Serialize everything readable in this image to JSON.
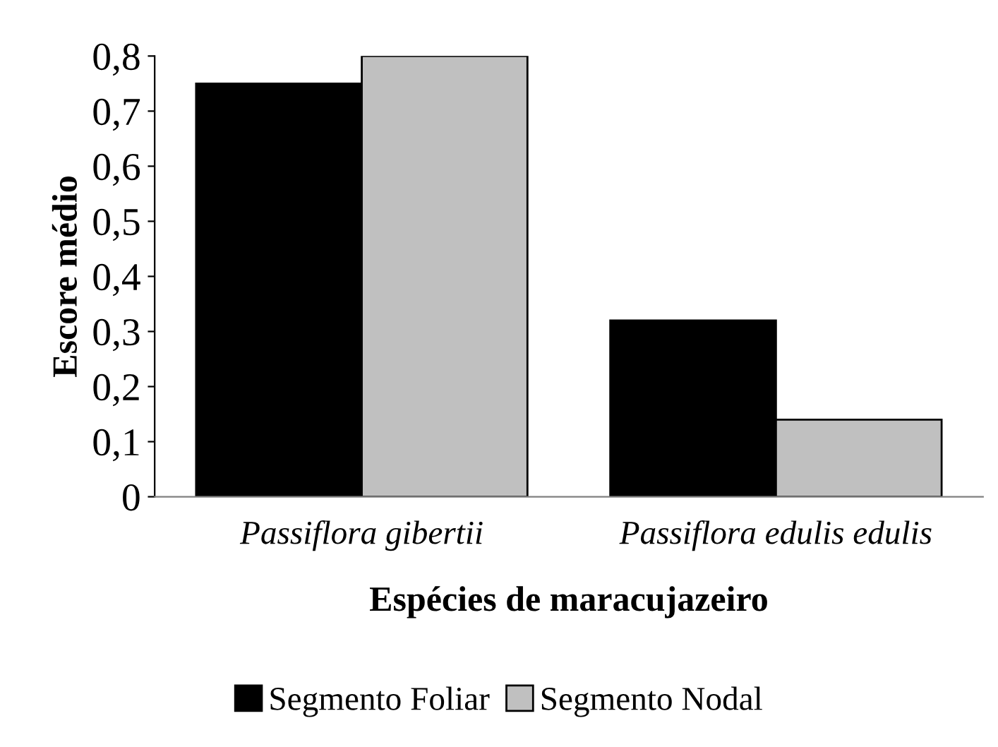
{
  "chart_data": {
    "type": "bar",
    "xlabel": "Espécies de maracujazeiro",
    "ylabel": "Escore médio",
    "categories": [
      "Passiflora gibertii",
      "Passiflora edulis edulis"
    ],
    "series": [
      {
        "name": "Segmento Foliar",
        "color": "#000000",
        "values": [
          0.75,
          0.32
        ]
      },
      {
        "name": "Segmento Nodal",
        "color": "#c0c0c0",
        "values": [
          0.8,
          0.14
        ]
      }
    ],
    "ylim": [
      0,
      0.8
    ],
    "yticks": [
      {
        "value": 0,
        "label": "0"
      },
      {
        "value": 0.1,
        "label": "0,1"
      },
      {
        "value": 0.2,
        "label": "0,2"
      },
      {
        "value": 0.3,
        "label": "0,3"
      },
      {
        "value": 0.4,
        "label": "0,4"
      },
      {
        "value": 0.5,
        "label": "0,5"
      },
      {
        "value": 0.6,
        "label": "0,6"
      },
      {
        "value": 0.7,
        "label": "0,7"
      },
      {
        "value": 0.8,
        "label": "0,8"
      }
    ],
    "grid": false,
    "legend": "bottom"
  }
}
